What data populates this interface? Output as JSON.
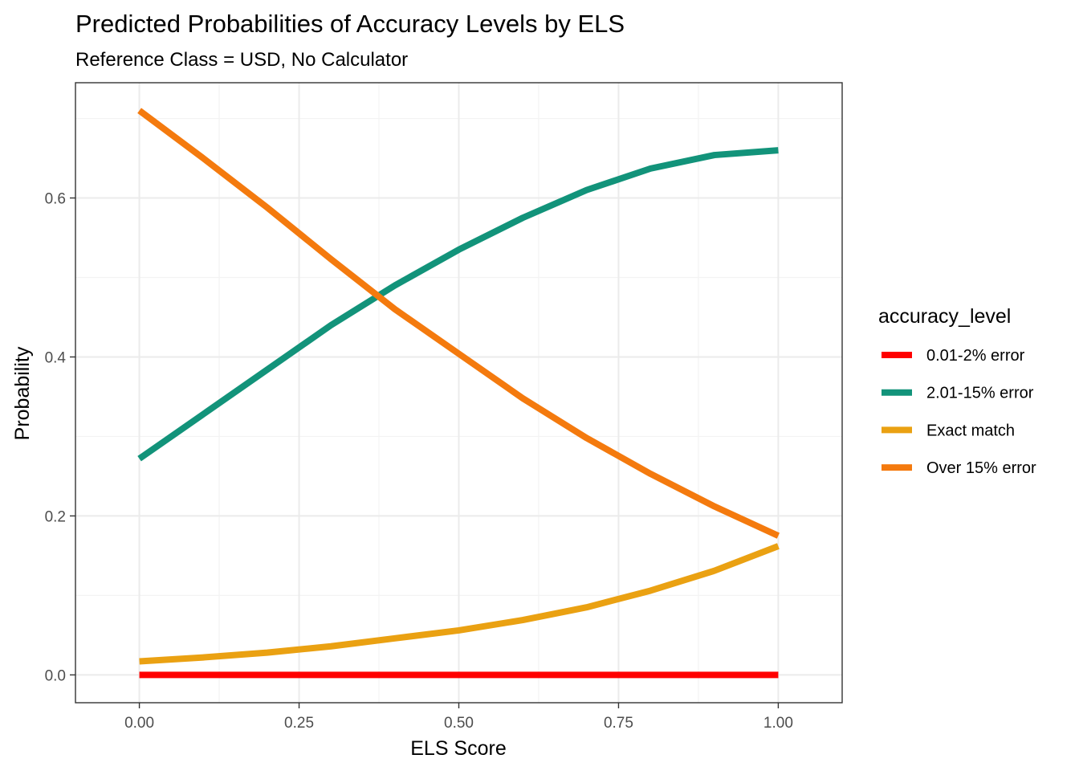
{
  "chart_data": {
    "type": "line",
    "title": "Predicted Probabilities of Accuracy Levels by ELS",
    "subtitle": "Reference Class = USD, No Calculator",
    "xlabel": "ELS Score",
    "ylabel": "Probability",
    "xlim": [
      -0.1,
      1.1
    ],
    "ylim": [
      -0.035,
      0.745
    ],
    "x_ticks": [
      0.0,
      0.25,
      0.5,
      0.75,
      1.0
    ],
    "x_tick_labels": [
      "0.00",
      "0.25",
      "0.50",
      "0.75",
      "1.00"
    ],
    "y_ticks": [
      0.0,
      0.2,
      0.4,
      0.6
    ],
    "y_tick_labels": [
      "0.0",
      "0.2",
      "0.4",
      "0.6"
    ],
    "grid": true,
    "legend": {
      "title": "accuracy_level",
      "placement": "right"
    },
    "x": [
      0.0,
      0.1,
      0.2,
      0.3,
      0.4,
      0.5,
      0.6,
      0.7,
      0.8,
      0.9,
      1.0
    ],
    "series": [
      {
        "name": "0.01-2% error",
        "color": "#FF0000",
        "values": [
          0.0,
          0.0,
          0.0,
          0.0,
          0.0,
          0.0,
          0.0,
          0.0,
          0.0,
          0.0,
          0.0
        ]
      },
      {
        "name": "2.01-15% error",
        "color": "#12937A",
        "values": [
          0.272,
          0.328,
          0.384,
          0.44,
          0.49,
          0.535,
          0.575,
          0.61,
          0.637,
          0.654,
          0.66
        ]
      },
      {
        "name": "Exact match",
        "color": "#EAA112",
        "values": [
          0.017,
          0.022,
          0.028,
          0.036,
          0.046,
          0.056,
          0.069,
          0.085,
          0.106,
          0.131,
          0.162
        ]
      },
      {
        "name": "Over 15% error",
        "color": "#F47A0E",
        "values": [
          0.71,
          0.65,
          0.588,
          0.523,
          0.46,
          0.404,
          0.348,
          0.298,
          0.253,
          0.212,
          0.175
        ]
      }
    ]
  }
}
